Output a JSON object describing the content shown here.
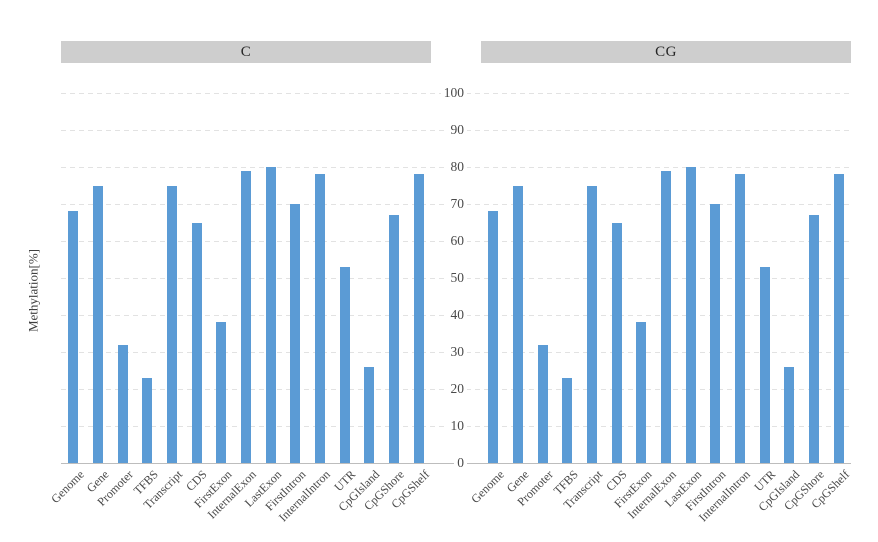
{
  "figure": {
    "y_axis": {
      "title": "Methylation[%]",
      "ticks": [
        0,
        10,
        20,
        30,
        40,
        50,
        60,
        70,
        80,
        90,
        100
      ],
      "min": 0,
      "max": 100
    },
    "colors": {
      "bar": "#5B9BD5",
      "header_bg": "#CECECE",
      "gridline": "#E2E2E2",
      "axis_line": "#BDBDBD",
      "tick_text": "#4A4A4A",
      "header_text": "#262626"
    }
  },
  "chart_data": [
    {
      "type": "bar",
      "title": "C",
      "ylabel": "Methylation[%]",
      "ylim": [
        0,
        100
      ],
      "grid": "dashed-horizontal",
      "legend": "none",
      "categories": [
        "Genome",
        "Gene",
        "Promoter",
        "TFBS",
        "Transcript",
        "CDS",
        "FirstExon",
        "InternalExon",
        "LastExon",
        "FirstIntron",
        "InternalIntron",
        "UTR",
        "CpGIsland",
        "CpGShore",
        "CpGShelf"
      ],
      "values": [
        68,
        75,
        32,
        23,
        75,
        65,
        38,
        79,
        80,
        70,
        78,
        53,
        26,
        67,
        78
      ]
    },
    {
      "type": "bar",
      "title": "CG",
      "ylabel": "Methylation[%]",
      "ylim": [
        0,
        100
      ],
      "grid": "dashed-horizontal",
      "legend": "none",
      "categories": [
        "Genome",
        "Gene",
        "Promoter",
        "TFBS",
        "Transcript",
        "CDS",
        "FirstExon",
        "InternalExon",
        "LastExon",
        "FirstIntron",
        "InternalIntron",
        "UTR",
        "CpGIsland",
        "CpGShore",
        "CpGShelf"
      ],
      "values": [
        68,
        75,
        32,
        23,
        75,
        65,
        38,
        79,
        80,
        70,
        78,
        53,
        26,
        67,
        78
      ]
    }
  ]
}
